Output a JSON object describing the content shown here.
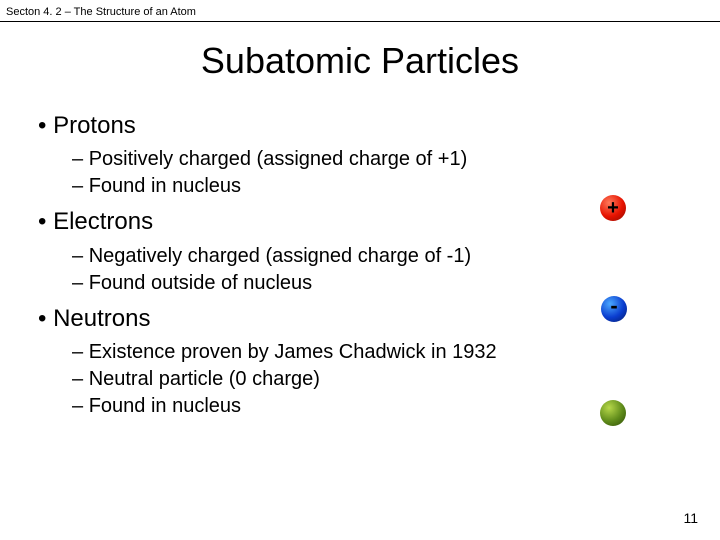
{
  "header": "Secton 4. 2 – The Structure of an Atom",
  "title": "Subatomic Particles",
  "sections": [
    {
      "name": "Protons",
      "points": [
        "Positively charged (assigned charge of +1)",
        "Found in nucleus"
      ]
    },
    {
      "name": "Electrons",
      "points": [
        "Negatively charged (assigned charge of -1)",
        "Found outside of nucleus"
      ]
    },
    {
      "name": "Neutrons",
      "points": [
        "Existence proven by James Chadwick in 1932",
        "Neutral particle (0 charge)",
        "Found in nucleus"
      ]
    }
  ],
  "particles": {
    "proton": {
      "symbol": "+",
      "color": "#e61200"
    },
    "electron": {
      "symbol": "-",
      "color": "#0a3dcf"
    },
    "neutron": {
      "symbol": "",
      "color": "#5e8a1a"
    }
  },
  "page_number": "11"
}
